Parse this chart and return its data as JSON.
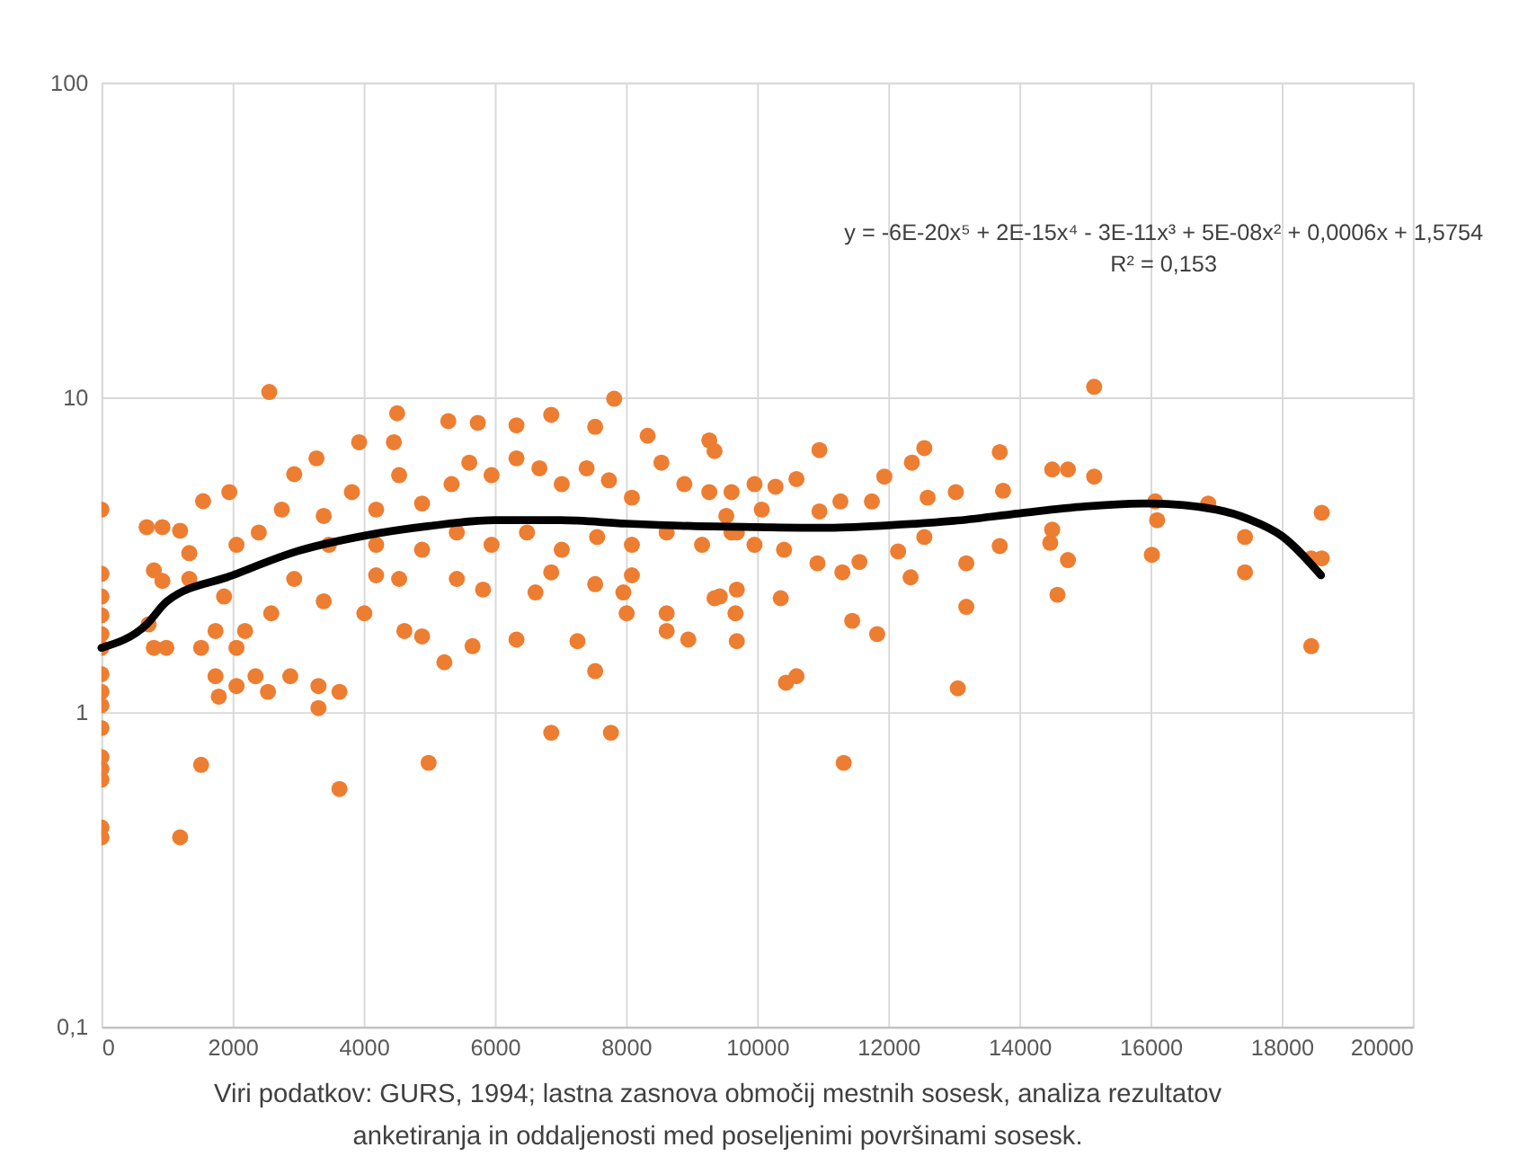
{
  "chart_data": {
    "type": "scatter",
    "log": "y",
    "grid": true,
    "xlim": [
      0,
      20000
    ],
    "xticks": [
      0,
      2000,
      4000,
      6000,
      8000,
      10000,
      12000,
      14000,
      16000,
      18000,
      20000
    ],
    "ylim": [
      0.1,
      100
    ],
    "yticks": [
      {
        "value": 0.1,
        "label": "0,1"
      },
      1,
      10,
      100
    ],
    "annotations": [
      "y = -6E-20x⁵ + 2E-15x⁴ - 3E-11x³ + 5E-08x² + 0,0006x + 1,5754",
      "R² = 0,153",
      "Viri podatkov: GURS, 1994; lastna zasnova območij mestnih sosesk, analiza rezultatov",
      "anketiranja in oddaljenosti med poseljenimi površinami sosesk."
    ],
    "series": [
      {
        "color": "#ed7d31",
        "marker": "circle",
        "x": [
          15140,
          10950,
          12550,
          13700,
          14500,
          14740,
          15140,
          11940,
          13030,
          13750,
          16070,
          16880,
          18610,
          16100,
          14500,
          13700,
          14470,
          17440,
          16020,
          14740,
          18610,
          18450,
          17440,
          13190,
          12340,
          12150,
          14580,
          13190,
          11830,
          11450,
          18450,
          13060,
          10440,
          10600,
          11320,
          10360,
          9690,
          10920,
          11300,
          11560,
          9960,
          10280,
          10600,
          11270,
          11750,
          10950,
          10070,
          9350,
          9610,
          9610,
          9960,
          10410,
          9430,
          9690,
          12360,
          12600,
          12550,
          2560,
          4510,
          5290,
          6860,
          7820,
          5740,
          6330,
          7530,
          9270,
          3930,
          3280,
          4460,
          8330,
          0,
          690,
          930,
          1200,
          1550,
          1950,
          2940,
          1340,
          800,
          930,
          1340,
          720,
          800,
          990,
          1520,
          1740,
          1740,
          1790,
          2060,
          2350,
          2540,
          2880,
          3310,
          3310,
          3630,
          4990,
          1520,
          3630,
          1200,
          6860,
          7770,
          0,
          0,
          0,
          0,
          0,
          0,
          0,
          0,
          0,
          0,
          0,
          0,
          0,
          0,
          5230,
          5660,
          7530,
          7260,
          4620,
          4890,
          6330,
          8010,
          8620,
          8950,
          9350,
          9670,
          8620,
          2590,
          2940,
          3390,
          4010,
          4190,
          4540,
          5420,
          5820,
          6620,
          6860,
          7530,
          7960,
          8090,
          2060,
          2400,
          2750,
          3390,
          3820,
          4190,
          4540,
          4890,
          5340,
          5610,
          5950,
          6330,
          6680,
          7020,
          7400,
          7740,
          8090,
          8540,
          8890,
          9270,
          9530,
          3470,
          4190,
          4890,
          5420,
          5950,
          6490,
          7020,
          7560,
          8090,
          8620,
          9160,
          9690,
          1870,
          2190,
          2060
        ],
        "values": [
          10.8,
          6.8,
          6.9,
          6.7,
          5.9,
          5.9,
          5.6,
          5.6,
          5.0,
          5.05,
          4.67,
          4.6,
          4.3,
          4.07,
          3.8,
          3.37,
          3.45,
          3.6,
          3.16,
          3.04,
          3.08,
          3.08,
          2.78,
          2.97,
          2.68,
          3.24,
          2.36,
          2.16,
          1.77,
          1.95,
          1.62,
          1.19,
          1.24,
          1.3,
          0.69,
          2.3,
          1.68,
          2.97,
          2.78,
          3.0,
          5.3,
          5.2,
          5.5,
          4.67,
          4.67,
          4.34,
          4.4,
          6.75,
          5.0,
          3.72,
          3.4,
          3.28,
          2.33,
          2.45,
          6.2,
          4.8,
          3.6,
          10.4,
          8.9,
          8.4,
          8.8,
          9.9,
          8.3,
          8.15,
          8.06,
          7.3,
          7.2,
          6.4,
          7.2,
          7.55,
          4.4,
          3.87,
          3.87,
          3.77,
          4.68,
          5.0,
          5.7,
          3.2,
          2.82,
          2.61,
          2.65,
          1.9,
          1.6,
          1.6,
          1.6,
          1.81,
          1.3,
          1.12,
          1.21,
          1.3,
          1.16,
          1.3,
          1.21,
          1.03,
          1.16,
          0.69,
          0.68,
          0.57,
          0.4,
          0.86,
          0.86,
          0.4,
          0.43,
          0.61,
          0.66,
          0.72,
          0.89,
          1.05,
          1.16,
          1.32,
          1.6,
          1.77,
          2.03,
          2.33,
          2.75,
          1.44,
          1.62,
          1.35,
          1.68,
          1.81,
          1.74,
          1.7,
          2.06,
          1.81,
          1.7,
          2.3,
          2.06,
          2.06,
          2.06,
          2.65,
          2.25,
          2.06,
          2.72,
          2.65,
          2.65,
          2.45,
          2.4,
          2.78,
          2.55,
          2.4,
          2.72,
          3.4,
          3.72,
          4.4,
          4.2,
          5.0,
          4.4,
          5.66,
          4.6,
          5.3,
          6.2,
          5.66,
          6.4,
          5.95,
          5.3,
          5.95,
          5.45,
          4.8,
          6.2,
          5.3,
          5.0,
          4.2,
          3.4,
          3.4,
          3.28,
          3.72,
          3.4,
          3.72,
          3.28,
          3.6,
          3.4,
          3.72,
          3.4,
          3.72,
          2.33,
          1.81,
          1.6
        ]
      },
      {
        "type": "line",
        "color": "#000000",
        "line_style": "solid",
        "marker": "none",
        "x": [
          0,
          690,
          1000,
          2000,
          3000,
          4000,
          5000,
          6000,
          7000,
          8000,
          9000,
          10000,
          11000,
          12000,
          13000,
          14000,
          15000,
          16000,
          17000,
          17500,
          18000,
          18600
        ],
        "values": [
          1.6,
          1.9,
          2.25,
          2.72,
          3.25,
          3.63,
          3.9,
          4.07,
          4.07,
          3.97,
          3.9,
          3.87,
          3.85,
          3.92,
          4.05,
          4.28,
          4.5,
          4.6,
          4.4,
          4.1,
          3.63,
          2.72
        ]
      }
    ]
  }
}
